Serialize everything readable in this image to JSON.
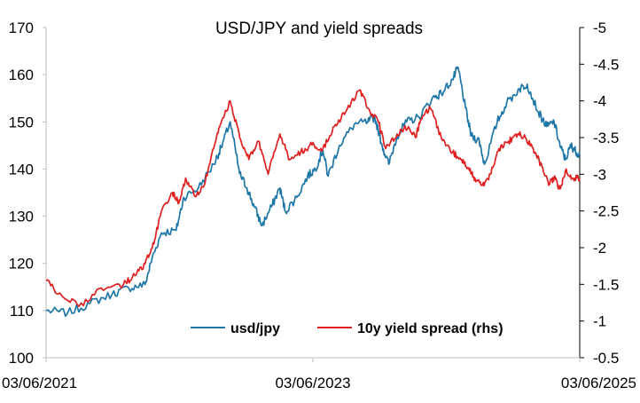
{
  "chart_data": {
    "type": "line",
    "title": "USD/JPY and yield spreads",
    "xlabel": "",
    "ylabel": "",
    "x_tick_labels": [
      "03/06/2021",
      "03/06/2023",
      "03/06/2025"
    ],
    "x_range": [
      "2021-06-03",
      "2025-06-03"
    ],
    "y_left": {
      "min": 100,
      "max": 170,
      "ticks": [
        100,
        110,
        120,
        130,
        140,
        150,
        160,
        170
      ]
    },
    "y_right": {
      "min": -0.5,
      "max": -5,
      "reversed": true,
      "ticks": [
        -5,
        -4.5,
        -4,
        -3.5,
        -3,
        -2.5,
        -2,
        -1.5,
        -1,
        -0.5
      ]
    },
    "legend_position": "bottom-center",
    "grid": false,
    "series": [
      {
        "name": "usd/jpy",
        "axis": "left",
        "color": "#1f77a8",
        "points": [
          [
            "2021-06-03",
            110
          ],
          [
            "2021-08-01",
            109.5
          ],
          [
            "2021-10-01",
            111.5
          ],
          [
            "2021-12-01",
            113.5
          ],
          [
            "2022-01-15",
            114.8
          ],
          [
            "2022-03-01",
            115.5
          ],
          [
            "2022-03-20",
            121
          ],
          [
            "2022-04-15",
            126.5
          ],
          [
            "2022-05-25",
            127
          ],
          [
            "2022-06-15",
            134
          ],
          [
            "2022-07-25",
            136
          ],
          [
            "2022-09-05",
            141
          ],
          [
            "2022-09-25",
            144.5
          ],
          [
            "2022-10-20",
            150
          ],
          [
            "2022-11-15",
            139
          ],
          [
            "2022-12-05",
            136
          ],
          [
            "2022-12-25",
            132
          ],
          [
            "2023-01-15",
            128
          ],
          [
            "2023-02-10",
            132
          ],
          [
            "2023-03-05",
            136
          ],
          [
            "2023-03-20",
            131
          ],
          [
            "2023-04-20",
            134
          ],
          [
            "2023-05-20",
            138.5
          ],
          [
            "2023-06-10",
            140
          ],
          [
            "2023-07-01",
            144
          ],
          [
            "2023-07-15",
            138.5
          ],
          [
            "2023-08-15",
            145
          ],
          [
            "2023-09-25",
            149.5
          ],
          [
            "2023-11-01",
            150
          ],
          [
            "2023-11-20",
            151
          ],
          [
            "2023-12-10",
            145
          ],
          [
            "2023-12-28",
            141
          ],
          [
            "2024-01-20",
            147
          ],
          [
            "2024-02-15",
            150
          ],
          [
            "2024-03-20",
            151
          ],
          [
            "2024-04-25",
            155
          ],
          [
            "2024-05-20",
            156
          ],
          [
            "2024-06-20",
            159
          ],
          [
            "2024-07-05",
            161.5
          ],
          [
            "2024-07-25",
            153
          ],
          [
            "2024-08-10",
            147
          ],
          [
            "2024-09-01",
            146
          ],
          [
            "2024-09-15",
            141
          ],
          [
            "2024-10-20",
            150
          ],
          [
            "2024-11-15",
            154
          ],
          [
            "2024-12-20",
            157
          ],
          [
            "2025-01-10",
            158
          ],
          [
            "2025-02-10",
            152
          ],
          [
            "2025-03-05",
            149
          ],
          [
            "2025-03-25",
            150
          ],
          [
            "2025-04-10",
            145
          ],
          [
            "2025-04-25",
            142
          ],
          [
            "2025-05-10",
            145
          ],
          [
            "2025-05-20",
            144
          ],
          [
            "2025-06-03",
            143
          ]
        ]
      },
      {
        "name": "10y yield spread (rhs)",
        "axis": "right",
        "color": "#e02020",
        "points": [
          [
            "2021-06-03",
            -1.55
          ],
          [
            "2021-07-15",
            -1.35
          ],
          [
            "2021-09-01",
            -1.2
          ],
          [
            "2021-11-01",
            -1.45
          ],
          [
            "2022-01-01",
            -1.5
          ],
          [
            "2022-02-01",
            -1.62
          ],
          [
            "2022-03-01",
            -1.78
          ],
          [
            "2022-03-25",
            -2.05
          ],
          [
            "2022-04-15",
            -2.5
          ],
          [
            "2022-05-15",
            -2.75
          ],
          [
            "2022-06-01",
            -2.6
          ],
          [
            "2022-06-20",
            -2.95
          ],
          [
            "2022-07-15",
            -2.7
          ],
          [
            "2022-08-10",
            -2.85
          ],
          [
            "2022-09-05",
            -3.35
          ],
          [
            "2022-09-25",
            -3.7
          ],
          [
            "2022-10-20",
            -4.0
          ],
          [
            "2022-11-15",
            -3.5
          ],
          [
            "2022-12-10",
            -3.2
          ],
          [
            "2023-01-05",
            -3.45
          ],
          [
            "2023-02-01",
            -3.0
          ],
          [
            "2023-03-05",
            -3.55
          ],
          [
            "2023-04-01",
            -3.2
          ],
          [
            "2023-05-01",
            -3.3
          ],
          [
            "2023-06-01",
            -3.4
          ],
          [
            "2023-07-01",
            -3.35
          ],
          [
            "2023-08-01",
            -3.65
          ],
          [
            "2023-09-01",
            -3.85
          ],
          [
            "2023-10-10",
            -4.15
          ],
          [
            "2023-11-01",
            -3.9
          ],
          [
            "2023-12-01",
            -3.7
          ],
          [
            "2023-12-20",
            -3.35
          ],
          [
            "2024-01-20",
            -3.55
          ],
          [
            "2024-02-20",
            -3.65
          ],
          [
            "2024-03-10",
            -3.5
          ],
          [
            "2024-03-25",
            -3.75
          ],
          [
            "2024-04-20",
            -3.9
          ],
          [
            "2024-05-20",
            -3.5
          ],
          [
            "2024-06-20",
            -3.3
          ],
          [
            "2024-07-15",
            -3.2
          ],
          [
            "2024-08-05",
            -3.05
          ],
          [
            "2024-08-20",
            -2.95
          ],
          [
            "2024-09-10",
            -2.85
          ],
          [
            "2024-10-01",
            -3.0
          ],
          [
            "2024-10-25",
            -3.35
          ],
          [
            "2024-11-20",
            -3.45
          ],
          [
            "2024-12-15",
            -3.55
          ],
          [
            "2025-01-05",
            -3.5
          ],
          [
            "2025-02-01",
            -3.3
          ],
          [
            "2025-02-20",
            -3.1
          ],
          [
            "2025-03-10",
            -2.85
          ],
          [
            "2025-03-25",
            -2.95
          ],
          [
            "2025-04-10",
            -2.8
          ],
          [
            "2025-04-25",
            -3.05
          ],
          [
            "2025-05-15",
            -2.95
          ],
          [
            "2025-06-03",
            -2.95
          ]
        ]
      }
    ]
  }
}
